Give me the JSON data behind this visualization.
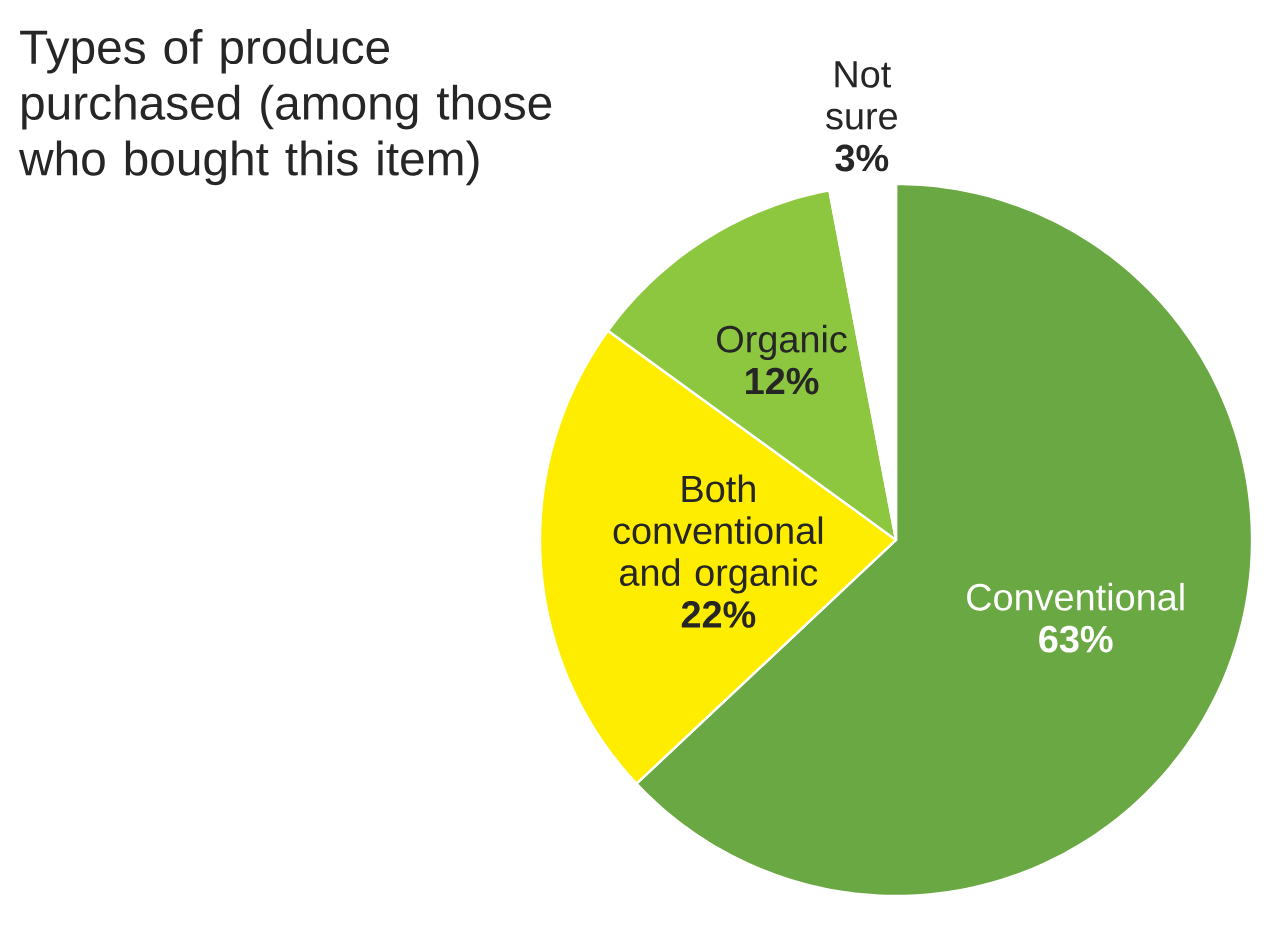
{
  "chart_data": {
    "type": "pie",
    "title": "Types of produce purchased (among those who bought this item)",
    "categories": [
      "Conventional",
      "Both conventional and organic",
      "Organic",
      "Not sure"
    ],
    "values": [
      63,
      22,
      12,
      3
    ],
    "value_labels": [
      "63%",
      "22%",
      "12%",
      "3%"
    ],
    "colors": [
      "#6aa843",
      "#ffed00",
      "#8dc63f",
      "#ffffff"
    ]
  }
}
